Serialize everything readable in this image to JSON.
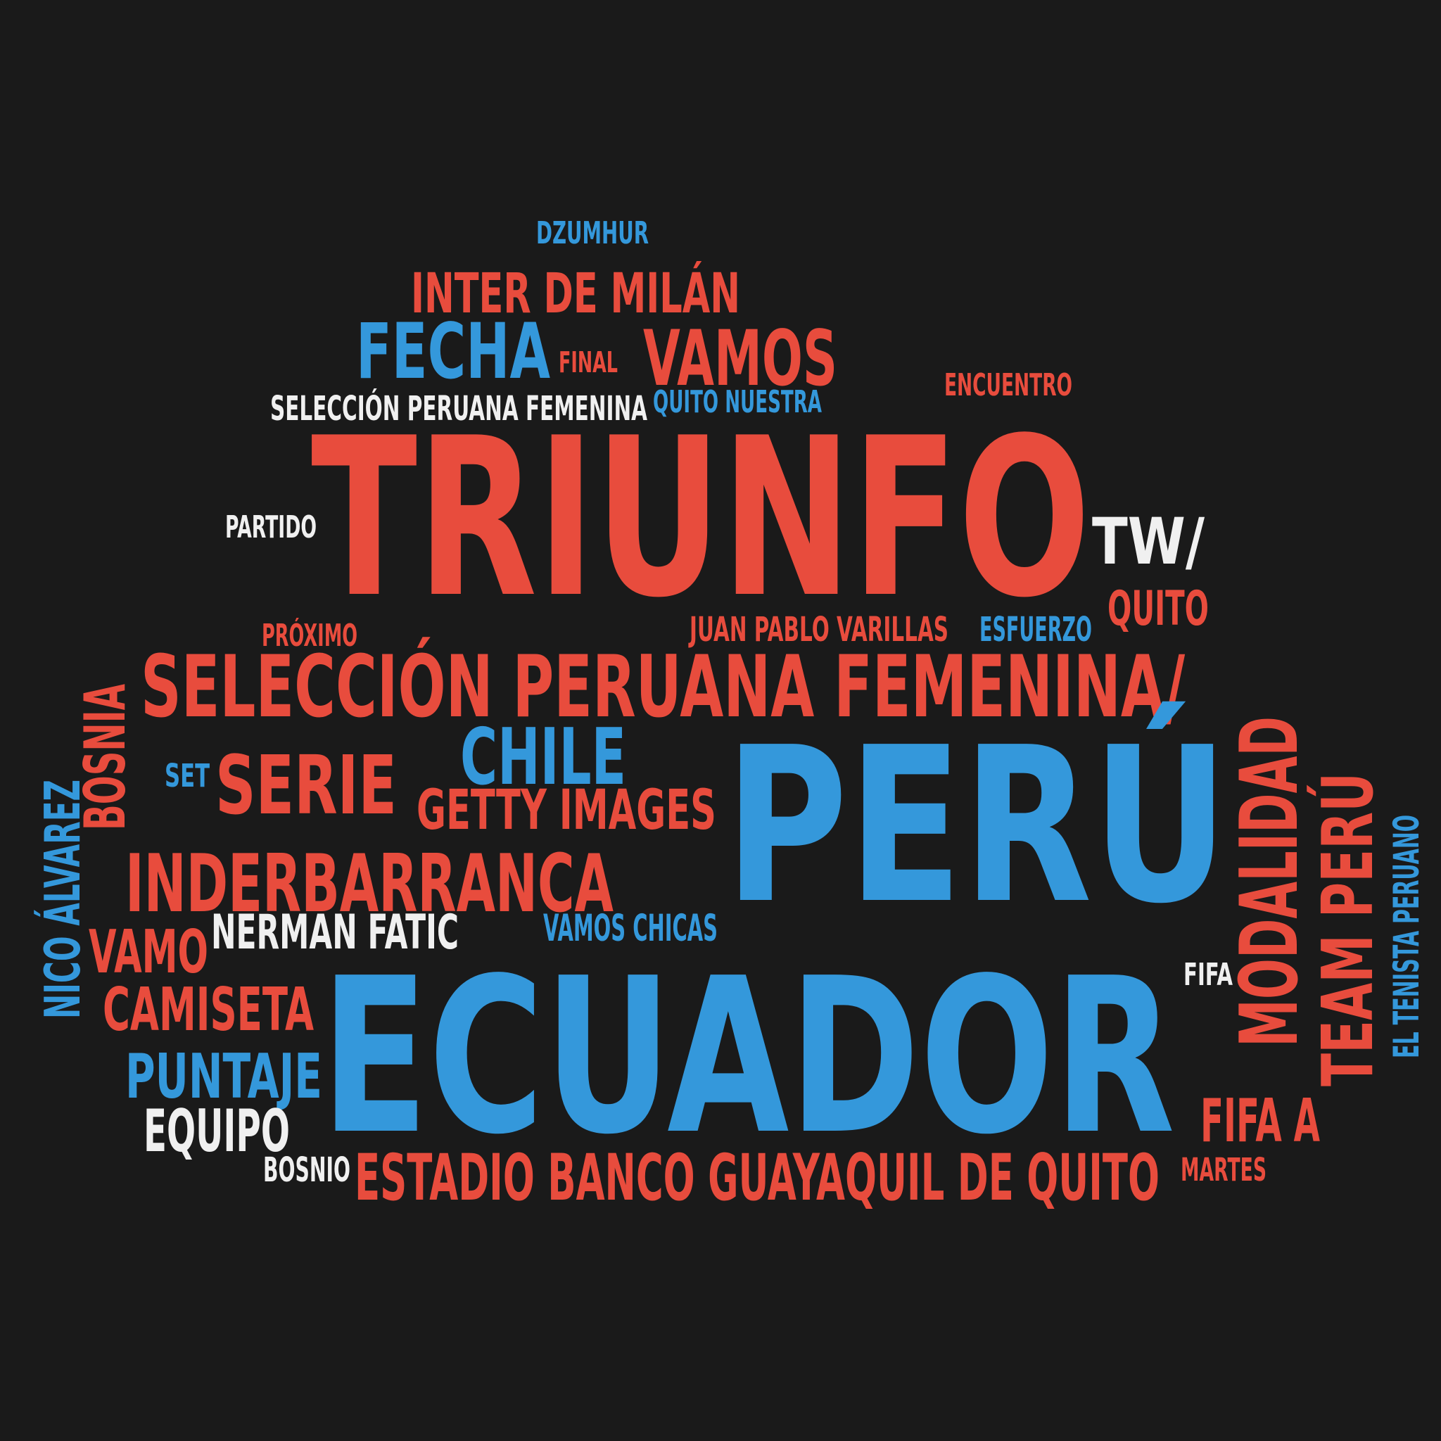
{
  "palette": {
    "red": "#e84c3d",
    "blue": "#3498db",
    "white": "#f0f0f0",
    "background": "#1a1a1a"
  },
  "words": [
    {
      "id": "dzumhur",
      "text": "DZUMHUR",
      "color": "blue",
      "vertical": false
    },
    {
      "id": "inter-de-milan",
      "text": "INTER DE MILÁN",
      "color": "red",
      "vertical": false
    },
    {
      "id": "fecha",
      "text": "FECHA",
      "color": "blue",
      "vertical": false
    },
    {
      "id": "final",
      "text": "FINAL",
      "color": "red",
      "vertical": false
    },
    {
      "id": "vamos",
      "text": "VAMOS",
      "color": "red",
      "vertical": false
    },
    {
      "id": "encuentro",
      "text": "ENCUENTRO",
      "color": "red",
      "vertical": false
    },
    {
      "id": "seleccion-peruana-femenina-small",
      "text": "SELECCIÓN PERUANA FEMENINA",
      "color": "white",
      "vertical": false
    },
    {
      "id": "quito-nuestra",
      "text": "QUITO NUESTRA",
      "color": "blue",
      "vertical": false
    },
    {
      "id": "triunfo",
      "text": "TRIUNFO",
      "color": "red",
      "vertical": false
    },
    {
      "id": "partido",
      "text": "PARTIDO",
      "color": "white",
      "vertical": false
    },
    {
      "id": "tw",
      "text": "TW/",
      "color": "white",
      "vertical": false
    },
    {
      "id": "quito",
      "text": "QUITO",
      "color": "red",
      "vertical": false
    },
    {
      "id": "proximo",
      "text": "PRÓXIMO",
      "color": "red",
      "vertical": false
    },
    {
      "id": "juan-pablo-varillas",
      "text": "JUAN PABLO VARILLAS",
      "color": "red",
      "vertical": false
    },
    {
      "id": "esfuerzo",
      "text": "ESFUERZO",
      "color": "blue",
      "vertical": false
    },
    {
      "id": "seleccion-peruana-femenina-large",
      "text": "SELECCIÓN PERUANA  FEMENINA/",
      "color": "red",
      "vertical": false
    },
    {
      "id": "bosnia",
      "text": "BOSNIA",
      "color": "red",
      "vertical": true
    },
    {
      "id": "nico-alvarez",
      "text": "NICO ÁLVAREZ",
      "color": "blue",
      "vertical": true
    },
    {
      "id": "set",
      "text": "SET",
      "color": "blue",
      "vertical": false
    },
    {
      "id": "serie",
      "text": "SERIE",
      "color": "red",
      "vertical": false
    },
    {
      "id": "chile",
      "text": "CHILE",
      "color": "blue",
      "vertical": false
    },
    {
      "id": "getty-images",
      "text": "GETTY IMAGES",
      "color": "red",
      "vertical": false
    },
    {
      "id": "peru",
      "text": "PERÚ",
      "color": "blue",
      "vertical": false
    },
    {
      "id": "modalidad",
      "text": "MODALIDAD",
      "color": "red",
      "vertical": true
    },
    {
      "id": "team-peru",
      "text": "TEAM PERÚ",
      "color": "red",
      "vertical": true
    },
    {
      "id": "el-tenista-peruano",
      "text": "EL TENISTA PERUANO",
      "color": "blue",
      "vertical": true
    },
    {
      "id": "inderbarranca",
      "text": "INDERBARRANCA",
      "color": "red",
      "vertical": false
    },
    {
      "id": "nerman-fatic",
      "text": "NERMAN FATIC",
      "color": "white",
      "vertical": false
    },
    {
      "id": "vamos-chicas",
      "text": "VAMOS CHICAS",
      "color": "blue",
      "vertical": false
    },
    {
      "id": "vamo",
      "text": "VAMO",
      "color": "red",
      "vertical": false
    },
    {
      "id": "fifa",
      "text": "FIFA",
      "color": "white",
      "vertical": false
    },
    {
      "id": "camiseta",
      "text": "CAMISETA",
      "color": "red",
      "vertical": false
    },
    {
      "id": "ecuador",
      "text": "ECUADOR",
      "color": "blue",
      "vertical": false
    },
    {
      "id": "puntaje",
      "text": "PUNTAJE",
      "color": "blue",
      "vertical": false
    },
    {
      "id": "fifa-a",
      "text": "FIFA A",
      "color": "red",
      "vertical": false
    },
    {
      "id": "equipo",
      "text": "EQUIPO",
      "color": "white",
      "vertical": false
    },
    {
      "id": "bosnio",
      "text": "BOSNIO",
      "color": "white",
      "vertical": false
    },
    {
      "id": "estadio-banco-guayaquil",
      "text": "ESTADIO BANCO GUAYAQUIL DE QUITO",
      "color": "red",
      "vertical": false
    },
    {
      "id": "martes",
      "text": "MARTES",
      "color": "red",
      "vertical": false
    }
  ]
}
